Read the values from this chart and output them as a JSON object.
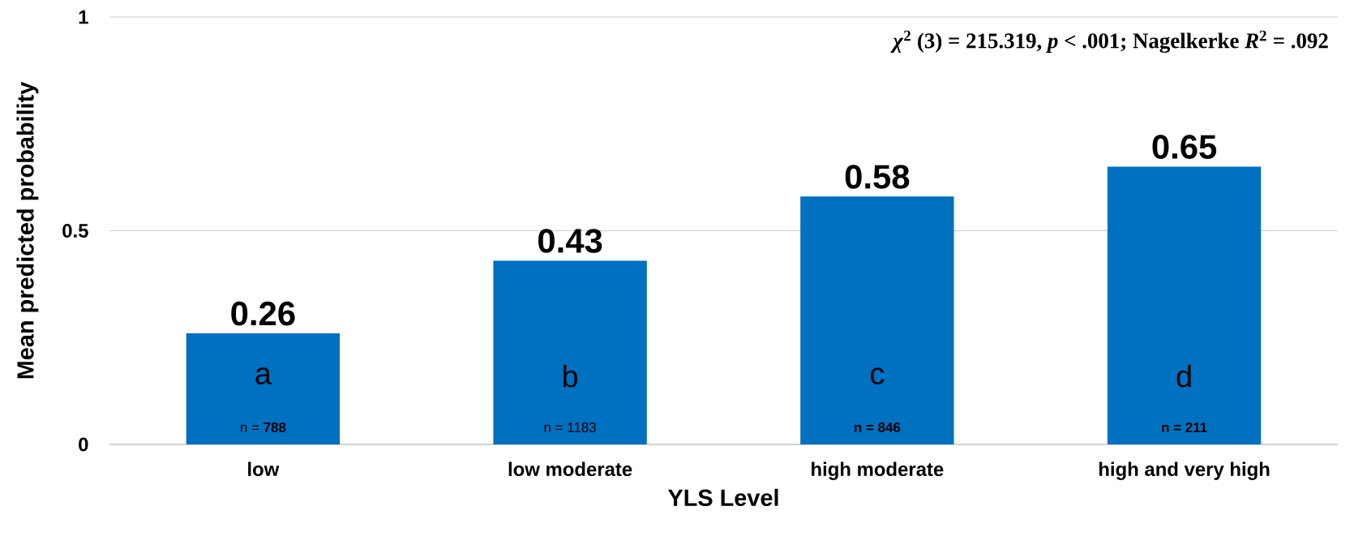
{
  "chart_data": {
    "type": "bar",
    "xlabel": "YLS Level",
    "ylabel": "Mean predicted probability",
    "categories": [
      "low",
      "low moderate",
      "high moderate",
      "high and very high"
    ],
    "values": [
      0.26,
      0.43,
      0.58,
      0.65
    ],
    "color": "#0070c0",
    "ylim": [
      0,
      1
    ],
    "yticks": [
      0,
      0.5,
      1
    ],
    "grid": "y",
    "data_labels": true,
    "annotations": [
      "*χ*$^{2}$ (3) = 215.319, *p* < .001; Nagelkerke *R*$^{2}$ = .092",
      "a",
      "b",
      "c",
      "d",
      "n = **788**",
      "n = 1183",
      "**n = 846**",
      "**n = 211**"
    ]
  }
}
